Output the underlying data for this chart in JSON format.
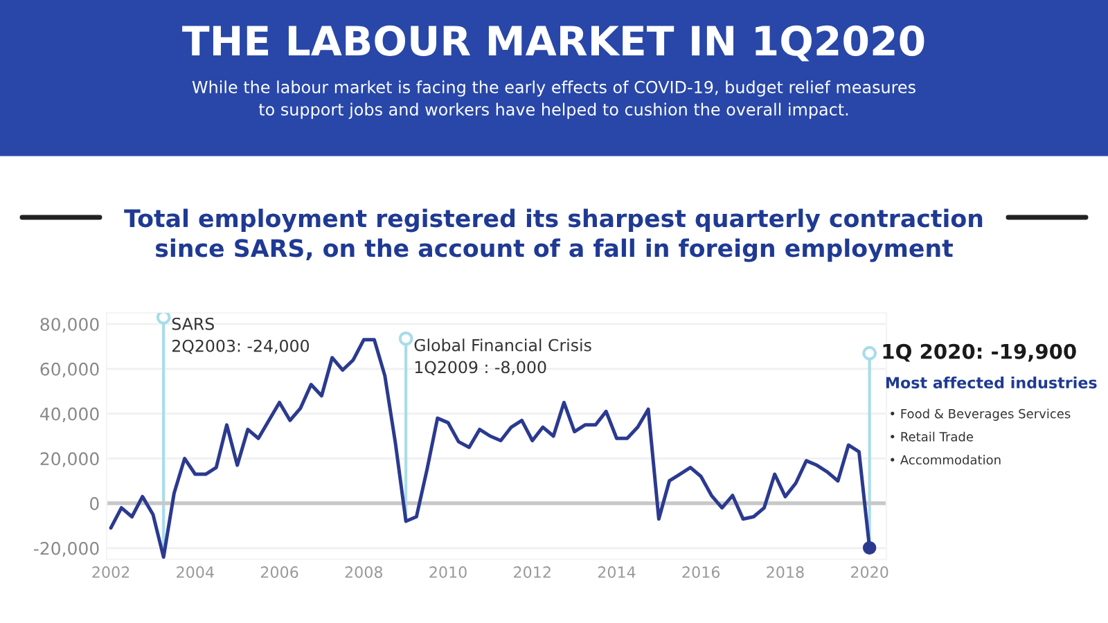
{
  "chart_data": {
    "type": "line",
    "title": "THE LABOUR MARKET IN 1Q2020",
    "subtitle": "While the labour market is facing the early effects of COVID-19, budget relief measures\nto support jobs and workers have helped to cushion the overall impact.",
    "x": [
      2002.0,
      2002.25,
      2002.5,
      2002.75,
      2003.0,
      2003.25,
      2003.5,
      2003.75,
      2004.0,
      2004.25,
      2004.5,
      2004.75,
      2005.0,
      2005.25,
      2005.5,
      2005.75,
      2006.0,
      2006.25,
      2006.5,
      2006.75,
      2007.0,
      2007.25,
      2007.5,
      2007.75,
      2008.0,
      2008.25,
      2008.5,
      2008.75,
      2009.0,
      2009.25,
      2009.5,
      2009.75,
      2010.0,
      2010.25,
      2010.5,
      2010.75,
      2011.0,
      2011.25,
      2011.5,
      2011.75,
      2012.0,
      2012.25,
      2012.5,
      2012.75,
      2013.0,
      2013.25,
      2013.5,
      2013.75,
      2014.0,
      2014.25,
      2014.5,
      2014.75,
      2015.0,
      2015.25,
      2015.5,
      2015.75,
      2016.0,
      2016.25,
      2016.5,
      2016.75,
      2017.0,
      2017.25,
      2017.5,
      2017.75,
      2018.0,
      2018.25,
      2018.5,
      2018.75,
      2019.0,
      2019.25,
      2019.5,
      2019.75,
      2020.0
    ],
    "series": [
      {
        "color": "#2b3a8f",
        "values": [
          -11000,
          -2000,
          -6000,
          3000,
          -5000,
          -24000,
          4500,
          20000,
          13000,
          13000,
          16000,
          35000,
          17000,
          33000,
          29000,
          37000,
          45000,
          37000,
          42500,
          53000,
          48000,
          65000,
          59500,
          64000,
          73000,
          73000,
          57000,
          27000,
          -8000,
          -6000,
          15000,
          38000,
          36000,
          27500,
          25000,
          33000,
          30000,
          28000,
          34000,
          37000,
          28000,
          34000,
          30000,
          45000,
          32000,
          35000,
          35000,
          41000,
          29000,
          29000,
          34000,
          42000,
          -7000,
          10000,
          13000,
          16000,
          12000,
          3500,
          -2000,
          3500,
          -7000,
          -6000,
          -2000,
          13000,
          3000,
          9000,
          19000,
          17000,
          14000,
          10000,
          26000,
          23000,
          -19900
        ]
      }
    ],
    "xlim": [
      2001.9,
      2020.4
    ],
    "xticks": [
      2002,
      2004,
      2006,
      2008,
      2010,
      2012,
      2014,
      2016,
      2018,
      2020
    ],
    "ylim": [
      -25000,
      85000
    ],
    "yticks": [
      {
        "value": -20000,
        "label": "-20,000"
      },
      {
        "value": 0,
        "label": "0"
      },
      {
        "value": 20000,
        "label": "20,000"
      },
      {
        "value": 40000,
        "label": "40,000"
      },
      {
        "value": 60000,
        "label": "60,000"
      },
      {
        "value": 80000,
        "label": "80,000"
      }
    ],
    "grid": "y",
    "marker": "none",
    "line_style": "solid",
    "ref_lines": [
      {
        "axis": "y",
        "value": 0,
        "color": "#c8c8c8"
      }
    ],
    "annotations": [
      "Total employment registered its sharpest quarterly contraction\nsince SARS, on the account of a fall in foreign employment",
      {
        "text": "SARS\n2Q2003: -24,000",
        "x": 2003.25,
        "y": -24000
      },
      {
        "text": "Global Financial Crisis\n1Q2009 : -8,000",
        "x": 2009.0,
        "y": -8000
      },
      {
        "text": "1Q 2020: -19,900",
        "x": 2020.0,
        "y": -19900
      },
      "Most affected industries",
      "• Food & Beverages Services",
      "• Retail Trade",
      "• Accommodation"
    ]
  }
}
